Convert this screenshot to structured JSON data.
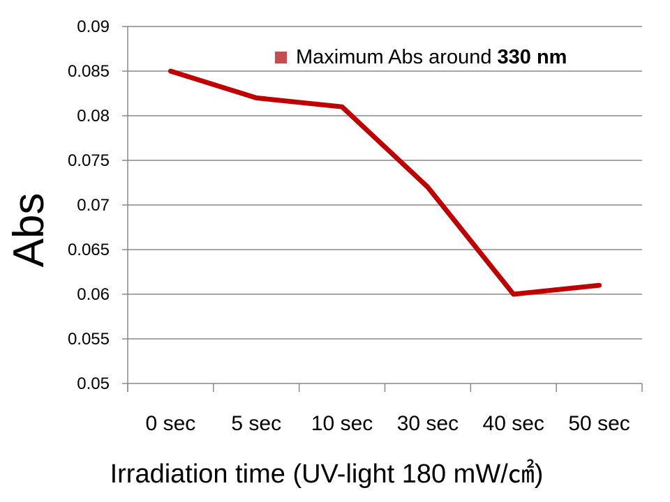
{
  "chart_data": {
    "type": "line",
    "title": "",
    "xlabel": "Irradiation time (UV-light 180 mW/㎠)",
    "ylabel": "Abs",
    "categories": [
      "0 sec",
      "5 sec",
      "10 sec",
      "30 sec",
      "40 sec",
      "50 sec"
    ],
    "series": [
      {
        "name": "Maximum Abs around 330 nm",
        "name_plain": "Maximum Abs around ",
        "name_bold": "330 nm",
        "color": "#C00000",
        "values": [
          0.085,
          0.082,
          0.081,
          0.072,
          0.06,
          0.061
        ]
      }
    ],
    "ylim": [
      0.05,
      0.09
    ],
    "yticks": [
      "0.05",
      "0.055",
      "0.06",
      "0.065",
      "0.07",
      "0.075",
      "0.08",
      "0.085",
      "0.09"
    ],
    "grid": true,
    "legend_position": "top-right",
    "legend_marker_color": "#C0504D"
  }
}
